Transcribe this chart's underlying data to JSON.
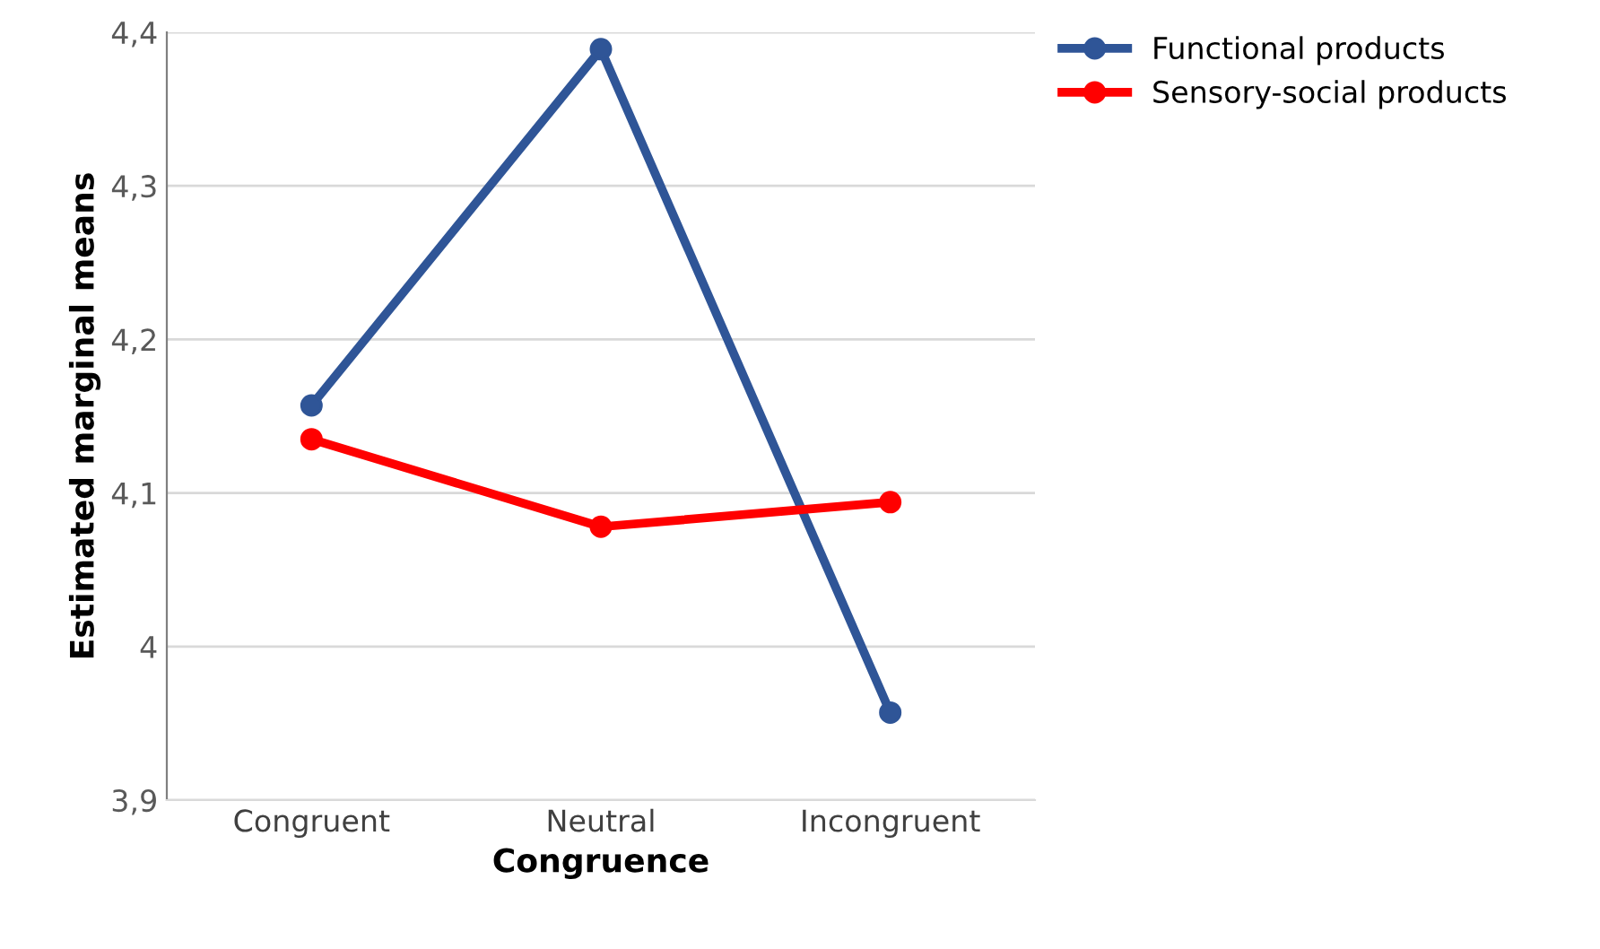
{
  "chart_data": {
    "type": "line",
    "xlabel": "Congruence",
    "ylabel": "Estimated marginal means",
    "categories": [
      "Congruent",
      "Neutral",
      "Incongruent"
    ],
    "series": [
      {
        "name": "Functional products",
        "color": "#2f5597",
        "values": [
          4.157,
          4.389,
          3.957
        ]
      },
      {
        "name": "Sensory-social products",
        "color": "#ff0000",
        "values": [
          4.135,
          4.078,
          4.094
        ]
      }
    ],
    "ylim": [
      3.9,
      4.4
    ],
    "yticks": [
      {
        "value": 3.9,
        "label": "3,9"
      },
      {
        "value": 4.0,
        "label": "4"
      },
      {
        "value": 4.1,
        "label": "4,1"
      },
      {
        "value": 4.2,
        "label": "4,2"
      },
      {
        "value": 4.3,
        "label": "4,3"
      },
      {
        "value": 4.4,
        "label": "4,4"
      }
    ],
    "grid": "y",
    "legend": "top right",
    "marker": "circle",
    "line_style": "solid"
  }
}
